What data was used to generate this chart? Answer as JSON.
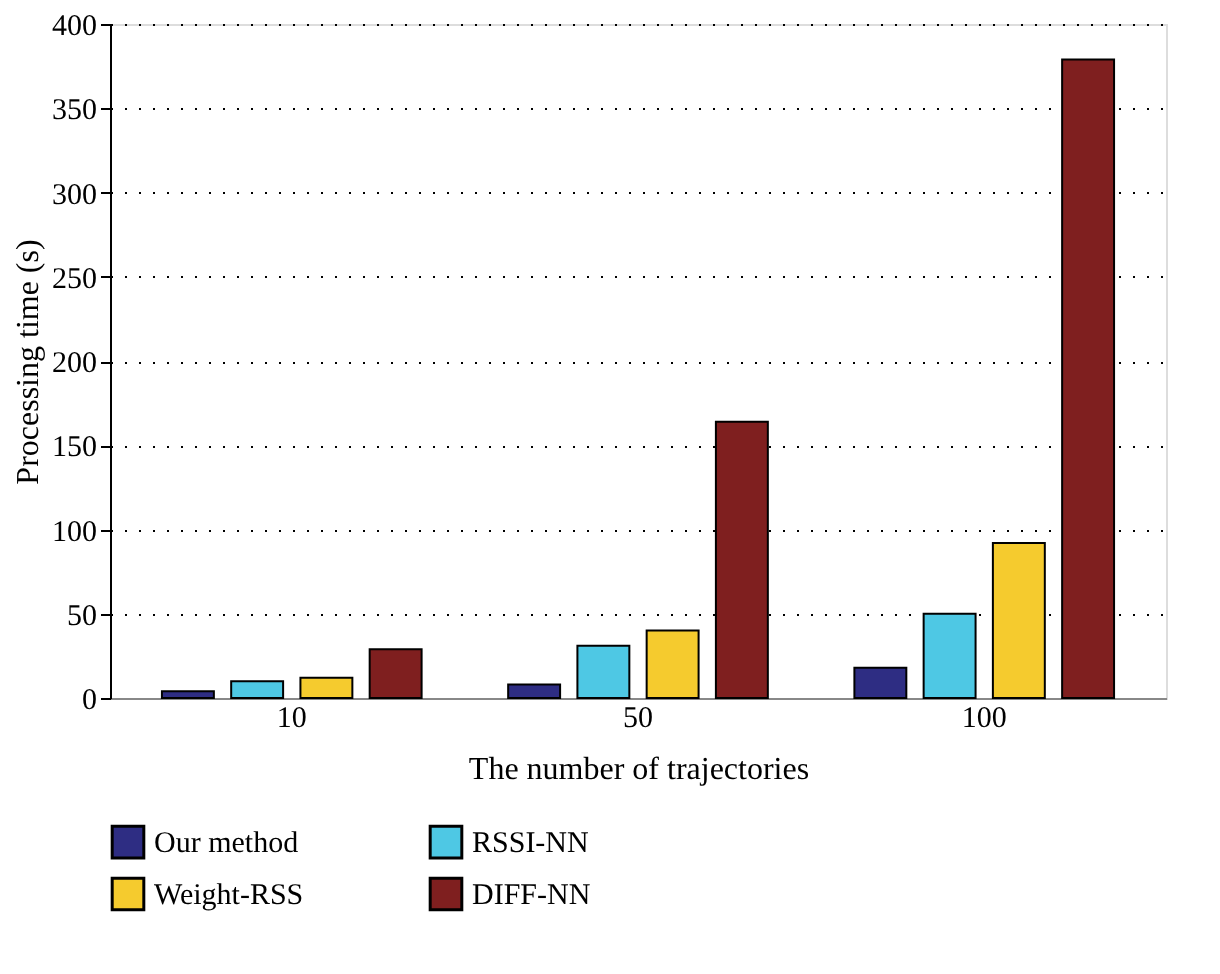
{
  "chart_data": {
    "type": "bar",
    "xlabel": "The number of trajectories",
    "ylabel": "Processing time (s)",
    "categories": [
      "10",
      "50",
      "100"
    ],
    "series": [
      {
        "name": "Our method",
        "color": "#2e2d83",
        "values": [
          4,
          8,
          18
        ]
      },
      {
        "name": "RSSI-NN",
        "color": "#4ec8e4",
        "values": [
          10,
          31,
          50
        ]
      },
      {
        "name": "Weight-RSS",
        "color": "#f5cb2e",
        "values": [
          12,
          40,
          92
        ]
      },
      {
        "name": "DIFF-NN",
        "color": "#7f1f1f",
        "values": [
          29,
          164,
          379
        ]
      }
    ],
    "ylim": [
      0,
      400
    ],
    "yticks": [
      0,
      50,
      100,
      150,
      200,
      250,
      300,
      350,
      400
    ],
    "grid": "y",
    "legend": "bottom"
  }
}
